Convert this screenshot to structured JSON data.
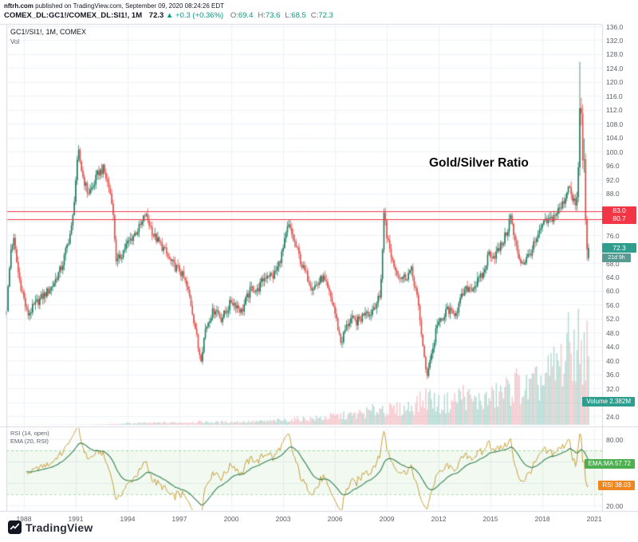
{
  "header": {
    "site": "nftrh.com",
    "published": "published on TradingView.com, September 09, 2020 08:24:26 EDT",
    "symbol": "COMEX_DL:GC1!/COMEX_DL:SI1!, 1M",
    "price": "72.3",
    "up_arrow": "▲",
    "change": "+0.3 (+0.36%)",
    "ohlc": [
      {
        "label": "O:",
        "value": "69.4"
      },
      {
        "label": "H:",
        "value": "73.6"
      },
      {
        "label": "L:",
        "value": "68.5"
      },
      {
        "label": "C:",
        "value": "72.3"
      }
    ]
  },
  "legend": {
    "title": "GC1!/SI1!, 1M, COMEX",
    "vol": "Vol"
  },
  "annotation": "Gold/Silver Ratio",
  "price_axis": {
    "labels": [
      "136.0",
      "132.0",
      "128.0",
      "124.0",
      "120.0",
      "116.0",
      "112.0",
      "108.0",
      "104.0",
      "100.0",
      "96.0",
      "92.0",
      "88.0",
      "76.0",
      "68.0",
      "64.0",
      "60.0",
      "56.0",
      "52.0",
      "48.0",
      "44.0",
      "40.0",
      "36.0",
      "32.0",
      "24.0"
    ]
  },
  "axis_badges": {
    "line1": "83.0",
    "line2": "80.7",
    "price": "72.3",
    "countdown": "21d 9h",
    "volume_label": "Volume",
    "volume_value": "2.382M",
    "ema_label": "EMA:MA",
    "ema_value": "57.72",
    "rsi_label": "RSI",
    "rsi_value": "38.03"
  },
  "rsi_pane": {
    "legend1": "RSI (14, open)",
    "legend2": "EMA (20, RSI)",
    "axis": [
      "80.00",
      "60.00",
      "40.00",
      "20.00"
    ]
  },
  "time_axis": [
    "1988",
    "1991",
    "1994",
    "1997",
    "2000",
    "2003",
    "2006",
    "2009",
    "2012",
    "2015",
    "2018",
    "2021"
  ],
  "logo": {
    "text": "TradingView"
  },
  "colors": {
    "up": "#1d7a5f",
    "down": "#e0504b",
    "vol_up": "#8fc7bb",
    "vol_down": "#f0aab4",
    "grid": "#eef1f6",
    "border": "#d9dce3",
    "alert_line": "#f23645",
    "rsi_line": "#c9a23b",
    "ema_line": "#35804d",
    "rsi_band_fill": "rgba(76,175,80,0.08)",
    "rsi_band_edge": "rgba(76,175,80,0.45)",
    "accent_up": "#089981",
    "badge_teal": "#2f9e8f",
    "badge_teal_dim": "#579a91",
    "badge_red": "#f23645",
    "badge_green": "#4caf50",
    "badge_orange": "#ee8722"
  },
  "chart_data": {
    "type": "candlestick",
    "title": "Gold/Silver Ratio",
    "symbol": "GC1!/SI1! (COMEX), 1M",
    "x_range": [
      1987.0,
      2021.8
    ],
    "price_range": [
      24,
      136
    ],
    "grid_step": 4,
    "red_lines": [
      83.0,
      80.7
    ],
    "last_price": 72.3,
    "last_ohlc": {
      "o": 69.4,
      "h": 73.6,
      "l": 68.5,
      "c": 72.3
    },
    "last_volume_m": 2.382,
    "close_keyframes": [
      [
        1987.0,
        55
      ],
      [
        1987.25,
        72
      ],
      [
        1987.4,
        75
      ],
      [
        1987.7,
        64
      ],
      [
        1987.9,
        60
      ],
      [
        1988.2,
        53
      ],
      [
        1988.5,
        55
      ],
      [
        1988.8,
        57
      ],
      [
        1989.2,
        59
      ],
      [
        1989.6,
        61
      ],
      [
        1989.9,
        64
      ],
      [
        1990.2,
        67
      ],
      [
        1990.5,
        73
      ],
      [
        1990.8,
        79
      ],
      [
        1991.0,
        92
      ],
      [
        1991.15,
        100
      ],
      [
        1991.4,
        93
      ],
      [
        1991.7,
        88
      ],
      [
        1992.0,
        90
      ],
      [
        1992.3,
        94
      ],
      [
        1992.6,
        95
      ],
      [
        1992.9,
        90
      ],
      [
        1993.1,
        86
      ],
      [
        1993.35,
        68
      ],
      [
        1993.6,
        70
      ],
      [
        1993.9,
        73
      ],
      [
        1994.2,
        75
      ],
      [
        1994.5,
        77
      ],
      [
        1994.8,
        79
      ],
      [
        1995.0,
        82
      ],
      [
        1995.2,
        80
      ],
      [
        1995.5,
        76
      ],
      [
        1995.8,
        74
      ],
      [
        1996.1,
        72
      ],
      [
        1996.4,
        69
      ],
      [
        1996.7,
        67
      ],
      [
        1997.0,
        66
      ],
      [
        1997.3,
        63
      ],
      [
        1997.6,
        58
      ],
      [
        1997.9,
        50
      ],
      [
        1998.1,
        43
      ],
      [
        1998.25,
        41
      ],
      [
        1998.5,
        49
      ],
      [
        1998.8,
        53
      ],
      [
        1999.1,
        55
      ],
      [
        1999.4,
        52
      ],
      [
        1999.7,
        54
      ],
      [
        2000.0,
        57
      ],
      [
        2000.3,
        56
      ],
      [
        2000.6,
        54
      ],
      [
        2000.9,
        58
      ],
      [
        2001.2,
        61
      ],
      [
        2001.5,
        60
      ],
      [
        2001.8,
        63
      ],
      [
        2002.1,
        65
      ],
      [
        2002.4,
        64
      ],
      [
        2002.7,
        67
      ],
      [
        2003.0,
        72
      ],
      [
        2003.3,
        79
      ],
      [
        2003.5,
        76
      ],
      [
        2003.8,
        72
      ],
      [
        2004.1,
        67
      ],
      [
        2004.4,
        64
      ],
      [
        2004.7,
        61
      ],
      [
        2005.0,
        62
      ],
      [
        2005.3,
        64
      ],
      [
        2005.6,
        60
      ],
      [
        2005.9,
        56
      ],
      [
        2006.1,
        51
      ],
      [
        2006.35,
        45
      ],
      [
        2006.6,
        49
      ],
      [
        2006.9,
        52
      ],
      [
        2007.2,
        51
      ],
      [
        2007.5,
        52
      ],
      [
        2007.8,
        55
      ],
      [
        2008.0,
        53
      ],
      [
        2008.3,
        56
      ],
      [
        2008.6,
        58
      ],
      [
        2008.75,
        72
      ],
      [
        2008.85,
        84
      ],
      [
        2009.0,
        76
      ],
      [
        2009.2,
        71
      ],
      [
        2009.5,
        66
      ],
      [
        2009.8,
        64
      ],
      [
        2010.1,
        64
      ],
      [
        2010.4,
        66
      ],
      [
        2010.7,
        60
      ],
      [
        2010.9,
        52
      ],
      [
        2011.1,
        44
      ],
      [
        2011.3,
        34
      ],
      [
        2011.45,
        40
      ],
      [
        2011.7,
        44
      ],
      [
        2011.9,
        51
      ],
      [
        2012.2,
        51
      ],
      [
        2012.5,
        55
      ],
      [
        2012.8,
        53
      ],
      [
        2013.1,
        55
      ],
      [
        2013.4,
        59
      ],
      [
        2013.7,
        61
      ],
      [
        2014.0,
        61
      ],
      [
        2014.3,
        63
      ],
      [
        2014.6,
        65
      ],
      [
        2014.9,
        71
      ],
      [
        2015.2,
        70
      ],
      [
        2015.5,
        72
      ],
      [
        2015.8,
        75
      ],
      [
        2016.0,
        78
      ],
      [
        2016.15,
        82
      ],
      [
        2016.4,
        74
      ],
      [
        2016.7,
        69
      ],
      [
        2016.9,
        68
      ],
      [
        2017.2,
        70
      ],
      [
        2017.5,
        73
      ],
      [
        2017.8,
        76
      ],
      [
        2018.0,
        79
      ],
      [
        2018.3,
        80
      ],
      [
        2018.6,
        81
      ],
      [
        2018.9,
        83
      ],
      [
        2019.1,
        84
      ],
      [
        2019.4,
        88
      ],
      [
        2019.55,
        92
      ],
      [
        2019.7,
        86
      ],
      [
        2019.9,
        85
      ],
      [
        2020.0,
        87
      ]
    ],
    "explicit_candles": [
      [
        2020.0,
        84.5,
        88.5,
        83.0,
        87.0
      ],
      [
        2020.083,
        87.0,
        97.0,
        85.5,
        95.5
      ],
      [
        2020.167,
        95.5,
        125.8,
        93.0,
        112.5
      ],
      [
        2020.25,
        112.5,
        115.5,
        107.5,
        111.0
      ],
      [
        2020.333,
        111.0,
        113.5,
        95.0,
        97.5
      ],
      [
        2020.417,
        97.5,
        103.8,
        94.0,
        97.8
      ],
      [
        2020.5,
        97.8,
        99.5,
        79.0,
        80.5
      ],
      [
        2020.583,
        80.5,
        81.5,
        68.8,
        72.0
      ],
      [
        2020.667,
        69.4,
        73.6,
        68.5,
        72.3
      ]
    ],
    "volume_keyframes": [
      [
        1987,
        0.004
      ],
      [
        1990,
        0.006
      ],
      [
        1992,
        0.01
      ],
      [
        1993.5,
        0.03
      ],
      [
        1994,
        0.05
      ],
      [
        1995,
        0.06
      ],
      [
        1996,
        0.07
      ],
      [
        1997,
        0.08
      ],
      [
        1998,
        0.1
      ],
      [
        1999,
        0.09
      ],
      [
        2000,
        0.1
      ],
      [
        2001,
        0.11
      ],
      [
        2002,
        0.12
      ],
      [
        2003,
        0.16
      ],
      [
        2004,
        0.2
      ],
      [
        2005,
        0.22
      ],
      [
        2006,
        0.3
      ],
      [
        2007,
        0.33
      ],
      [
        2008,
        0.45
      ],
      [
        2008.8,
        0.6
      ],
      [
        2009,
        0.5
      ],
      [
        2010,
        0.55
      ],
      [
        2011,
        0.8
      ],
      [
        2011.4,
        1.0
      ],
      [
        2012,
        0.7
      ],
      [
        2013,
        0.85
      ],
      [
        2013.3,
        1.1
      ],
      [
        2014,
        0.8
      ],
      [
        2015,
        0.9
      ],
      [
        2016,
        1.2
      ],
      [
        2016.5,
        1.4
      ],
      [
        2017,
        1.2
      ],
      [
        2018,
        1.5
      ],
      [
        2018.8,
        2.0
      ],
      [
        2019.3,
        2.3
      ],
      [
        2019.6,
        2.8
      ],
      [
        2020.0,
        2.6
      ],
      [
        2020.167,
        3.1
      ],
      [
        2020.4,
        2.3
      ],
      [
        2020.55,
        2.9
      ],
      [
        2020.667,
        2.382
      ]
    ],
    "rsi": {
      "period": 14,
      "source": "open",
      "last": 38.03,
      "ema_period": 20,
      "ema_last": 57.72,
      "axis_range": [
        20,
        80
      ],
      "band": [
        30,
        70
      ]
    }
  }
}
